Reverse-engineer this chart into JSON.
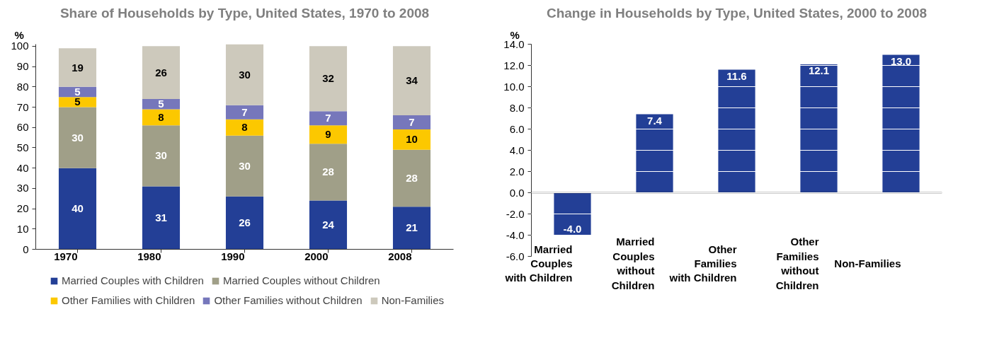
{
  "chart_data": [
    {
      "type": "bar",
      "title": "Share of Households by Type, United States, 1970 to 2008",
      "ylabel": "%",
      "stacked": true,
      "categories": [
        "1970",
        "1980",
        "1990",
        "2000",
        "2008"
      ],
      "series": [
        {
          "name": "Married Couples with Children",
          "color": "#233f96",
          "values": [
            40,
            31,
            26,
            24,
            21
          ]
        },
        {
          "name": "Married Couples without Children",
          "color": "#a09f88",
          "values": [
            30,
            30,
            30,
            28,
            28
          ]
        },
        {
          "name": "Other Families with Children",
          "color": "#fcc800",
          "values": [
            5,
            8,
            8,
            9,
            10
          ]
        },
        {
          "name": "Other Families without Children",
          "color": "#7677bb",
          "values": [
            5,
            5,
            7,
            7,
            7
          ]
        },
        {
          "name": "Non-Families",
          "color": "#cdc9bc",
          "values": [
            19,
            26,
            30,
            32,
            34
          ]
        }
      ],
      "ylim": [
        0,
        101
      ],
      "yticks": [
        0,
        10,
        20,
        30,
        40,
        50,
        60,
        70,
        80,
        90,
        100
      ],
      "grid": false,
      "legend": "bottom",
      "data_labels": true
    },
    {
      "type": "bar",
      "title": "Change in Households by Type, United States, 2000 to 2008",
      "ylabel": "%",
      "categories": [
        "Married\nCouples\nwith Children",
        "Married\nCouples\nwithout\nChildren",
        "Other\nFamilies\nwith Children",
        "Other\nFamilies\nwithout\nChildren",
        "Non-Families"
      ],
      "values": [
        -4.0,
        7.4,
        11.6,
        12.1,
        13.0
      ],
      "color": "#233f96",
      "value_labels": [
        "-4.0",
        "7.4",
        "11.6",
        "12.1",
        "13.0"
      ],
      "ylim": [
        -6,
        14
      ],
      "yticks": [
        {
          "value": -6,
          "label": "-6.0"
        },
        {
          "value": -4,
          "label": "-4.0"
        },
        {
          "value": -2,
          "label": "-2.0"
        },
        {
          "value": 0,
          "label": "0.0"
        },
        {
          "value": 2,
          "label": "2.0"
        },
        {
          "value": 4,
          "label": "4.0"
        },
        {
          "value": 6,
          "label": "6.0"
        },
        {
          "value": 8,
          "label": "8.0"
        },
        {
          "value": 10,
          "label": "10.0"
        },
        {
          "value": 12,
          "label": "12.0"
        },
        {
          "value": 14,
          "label": "14.0"
        }
      ],
      "grid": "y",
      "legend": false
    }
  ]
}
